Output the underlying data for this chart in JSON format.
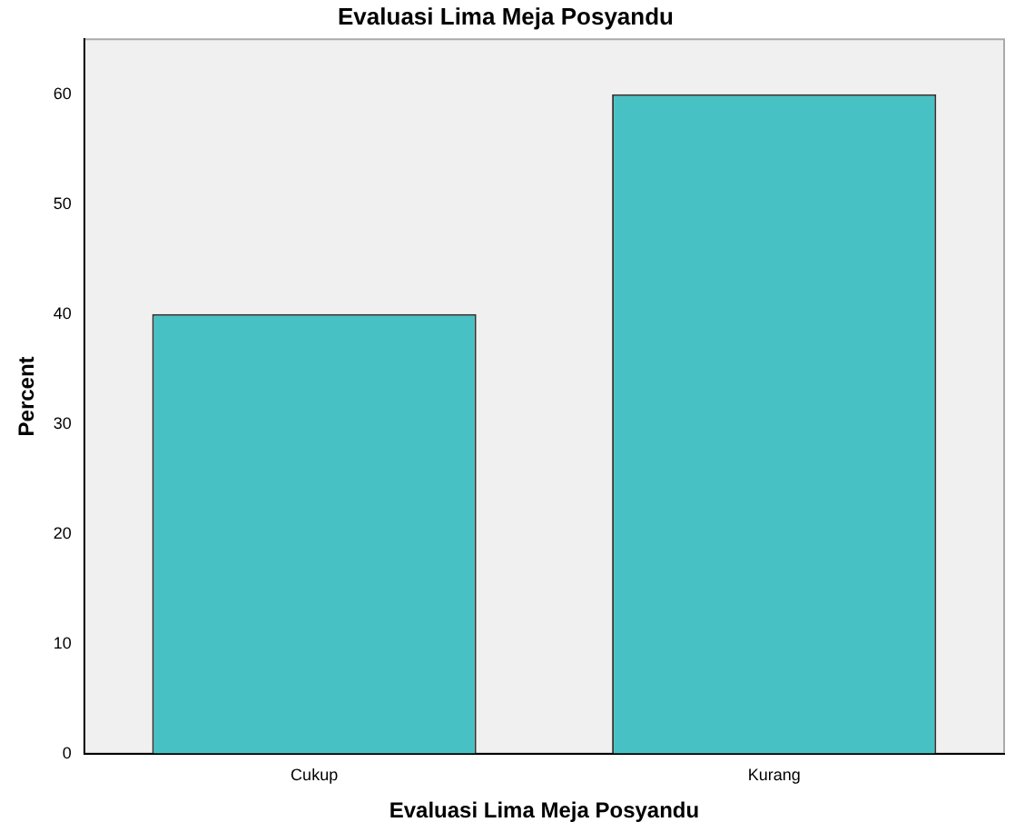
{
  "chart_data": {
    "type": "bar",
    "title": "Evaluasi Lima Meja Posyandu",
    "xlabel": "Evaluasi Lima Meja Posyandu",
    "ylabel": "Percent",
    "categories": [
      "Cukup",
      "Kurang"
    ],
    "values": [
      40,
      60
    ],
    "color": "#48c1c4",
    "ylim": [
      0,
      65
    ],
    "yticks": [
      0,
      10,
      20,
      30,
      40,
      50,
      60
    ],
    "grid": false,
    "legend": false
  }
}
